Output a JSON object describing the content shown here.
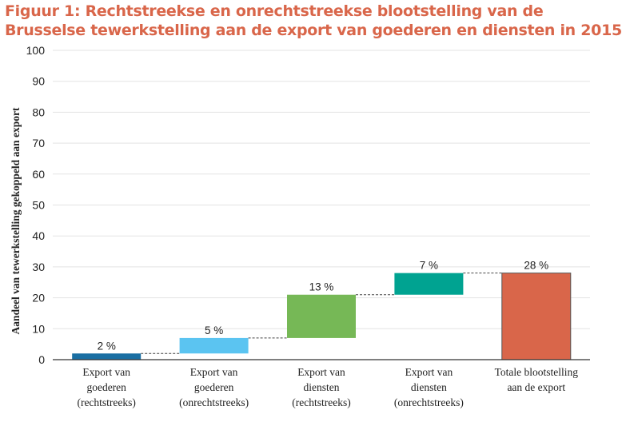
{
  "title": {
    "line1": "Figuur 1: Rechtstreekse en onrechtstreekse blootstelling van de",
    "line2": "Brusselse tewerkstelling aan de export van goederen en diensten in 2015"
  },
  "chart_data": {
    "type": "bar",
    "subtype": "waterfall",
    "ylabel": "Aandeel van tewerkstelling gekoppeld aan export",
    "ylim": [
      0,
      100
    ],
    "yticks": [
      0,
      10,
      20,
      30,
      40,
      50,
      60,
      70,
      80,
      90,
      100
    ],
    "grid": true,
    "categories": [
      [
        "Export van",
        "goederen",
        "(rechtstreeks)"
      ],
      [
        "Export van",
        "goederen",
        "(onrechtstreeks)"
      ],
      [
        "Export van",
        "diensten",
        "(rechtstreeks)"
      ],
      [
        "Export van",
        "diensten",
        "(onrechtstreeks)"
      ],
      [
        "Totale blootstelling",
        "aan de export"
      ]
    ],
    "bars": [
      {
        "start": 0,
        "end": 2,
        "label": "2 %",
        "color": "#1a6fa3"
      },
      {
        "start": 2,
        "end": 7,
        "label": "5 %",
        "color": "#5bc4f1"
      },
      {
        "start": 7,
        "end": 21,
        "label": "13 %",
        "color": "#76b856"
      },
      {
        "start": 21,
        "end": 28,
        "label": "7 %",
        "color": "#00a391"
      },
      {
        "start": 0,
        "end": 28,
        "label": "28 %",
        "color": "#d9664a"
      }
    ]
  }
}
